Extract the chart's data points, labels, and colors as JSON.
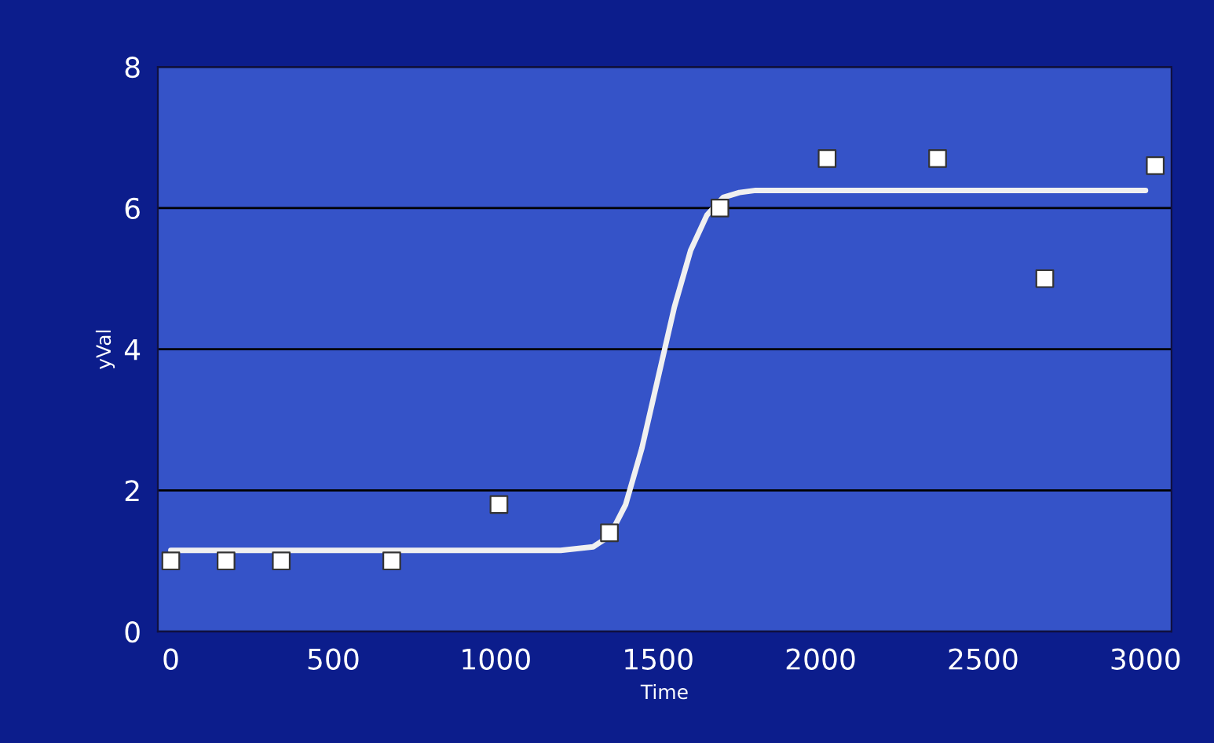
{
  "chart_data": {
    "type": "scatter",
    "xlabel": "Time",
    "ylabel": "yVal",
    "xlim": [
      -40,
      3080
    ],
    "ylim": [
      0,
      8
    ],
    "xticks": [
      0,
      500,
      1000,
      1500,
      2000,
      2500,
      3000
    ],
    "yticks": [
      0,
      2,
      4,
      6,
      8
    ],
    "grid": "y",
    "series": [
      {
        "marker": "square",
        "color": "#ffffff",
        "x": [
          0,
          170,
          340,
          680,
          1010,
          1350,
          1690,
          2020,
          2360,
          2690,
          3030
        ],
        "values": [
          1,
          1,
          1,
          1,
          1.8,
          1.4,
          6.0,
          6.7,
          6.7,
          5.0,
          6.6
        ]
      },
      {
        "type": "line",
        "marker": "none",
        "color": "#f0f0f0",
        "x": [
          0,
          600,
          1200,
          1300,
          1350,
          1400,
          1450,
          1500,
          1550,
          1600,
          1650,
          1700,
          1750,
          1800,
          2400,
          3000
        ],
        "values": [
          1.15,
          1.15,
          1.15,
          1.2,
          1.35,
          1.8,
          2.6,
          3.6,
          4.6,
          5.4,
          5.9,
          6.15,
          6.22,
          6.25,
          6.25,
          6.25
        ]
      }
    ]
  }
}
